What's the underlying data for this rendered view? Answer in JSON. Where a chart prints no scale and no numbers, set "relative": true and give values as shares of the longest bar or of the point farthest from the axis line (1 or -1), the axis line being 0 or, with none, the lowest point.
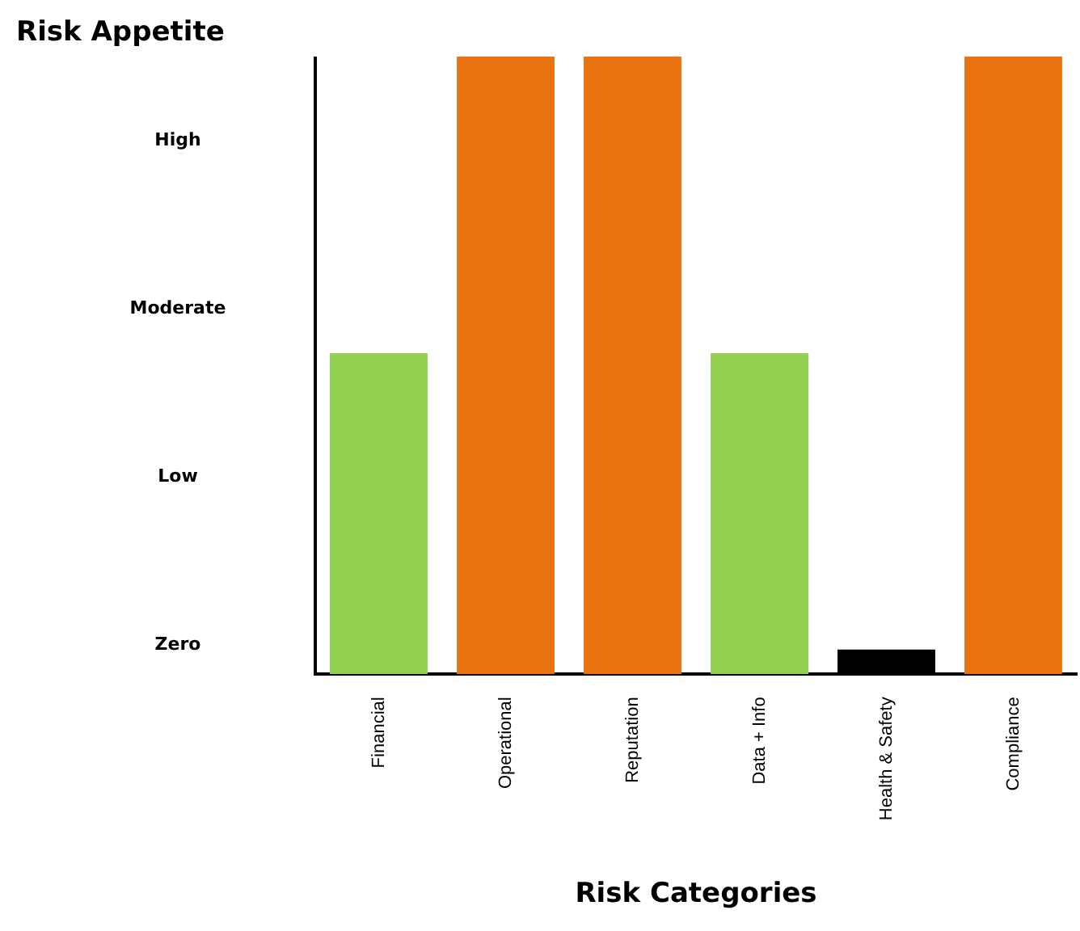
{
  "chart_data": {
    "type": "bar",
    "title": "Risk Appetite",
    "xlabel": "Risk Categories",
    "categories": [
      "Financial",
      "Operational",
      "Reputation",
      "Data + Info",
      "Health & Safety",
      "Compliance"
    ],
    "values": [
      0.52,
      1,
      1,
      0.52,
      0.04,
      1
    ],
    "colors": [
      "#92d050",
      "#e97311",
      "#e97311",
      "#92d050",
      "#000000",
      "#e97311"
    ],
    "relative": true,
    "annotations": [
      "Zero",
      "Low",
      "Moderate",
      "High"
    ],
    "grid": false,
    "legend": false
  }
}
